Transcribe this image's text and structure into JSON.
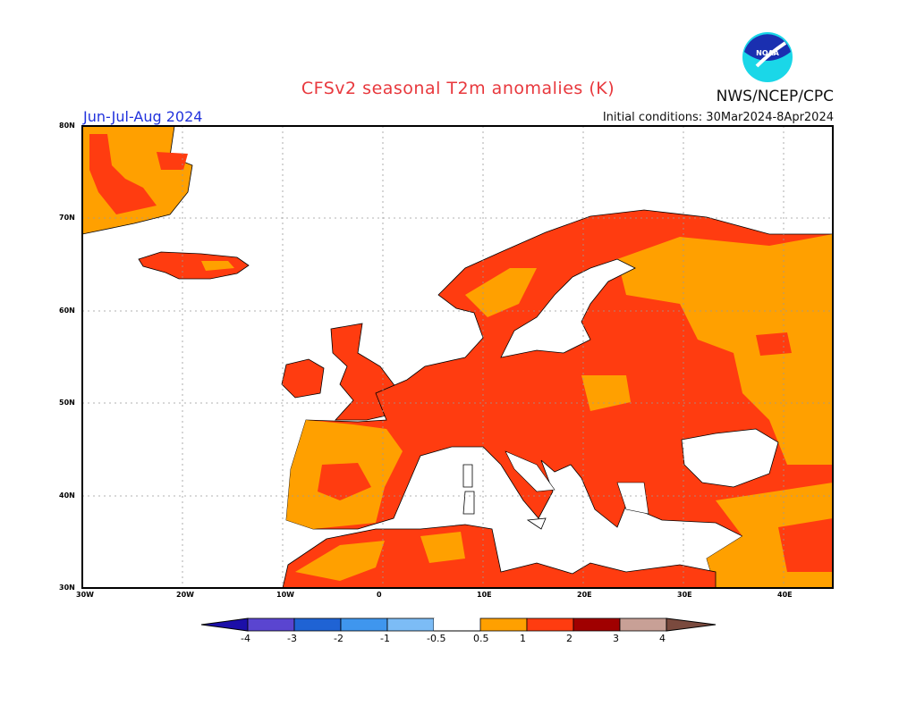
{
  "header": {
    "title": "CFSv2 seasonal T2m anomalies (K)",
    "credit": "NWS/NCEP/CPC",
    "season": "Jun-Jul-Aug 2024",
    "initial_conditions": "Initial conditions: 30Mar2024-8Apr2024",
    "logo_text": "NOAA"
  },
  "map": {
    "region": "Europe",
    "lat_labels": [
      "80N",
      "70N",
      "60N",
      "50N",
      "40N",
      "30N"
    ],
    "lon_labels": [
      "30W",
      "20W",
      "10W",
      "0",
      "10E",
      "20E",
      "30E",
      "40E"
    ],
    "land_colors": {
      "anomaly_0_5_to_1": "#ffa000",
      "anomaly_1_to_2": "#ff3c10",
      "no_signal": "#ffffff"
    }
  },
  "colorbar": {
    "labels": [
      "-4",
      "-3",
      "-2",
      "-1",
      "-0.5",
      "0.5",
      "1",
      "2",
      "3",
      "4"
    ],
    "colors": [
      "#1c0fa8",
      "#5a45d0",
      "#1f63d4",
      "#3f96ee",
      "#7cbcf6",
      "#ffffff",
      "#ffa000",
      "#ff3c10",
      "#a00000",
      "#c8a096",
      "#7a4a3e"
    ]
  }
}
